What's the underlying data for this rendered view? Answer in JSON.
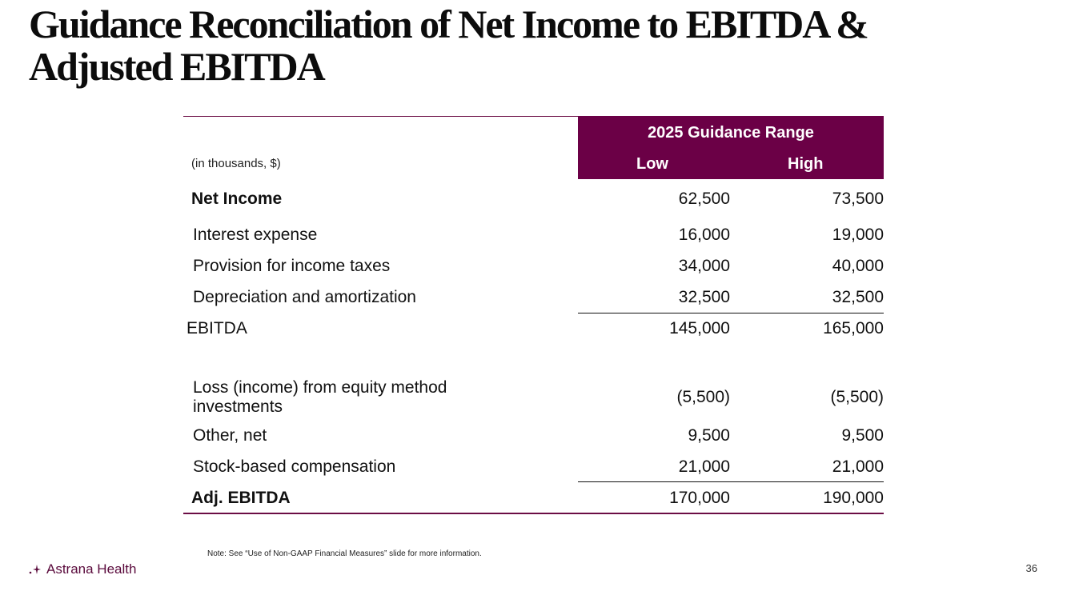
{
  "slide": {
    "title": "Guidance Reconciliation of Net Income to EBITDA & Adjusted EBITDA",
    "page_number": "36",
    "note": "Note: See “Use of Non-GAAP Financial Measures” slide for more information.",
    "logo_text": "Astrana Health"
  },
  "table": {
    "units_label": "(in thousands, $)",
    "group_header": "2025 Guidance Range",
    "col_low": "Low",
    "col_high": "High",
    "rows": [
      {
        "label": "Net Income",
        "low": "62,500",
        "high": "73,500"
      },
      {
        "label": "Interest expense",
        "low": "16,000",
        "high": "19,000"
      },
      {
        "label": "Provision for income taxes",
        "low": "34,000",
        "high": "40,000"
      },
      {
        "label": "Depreciation and amortization",
        "low": "32,500",
        "high": "32,500"
      },
      {
        "label": "EBITDA",
        "low": "145,000",
        "high": "165,000"
      },
      {
        "label": "Loss (income) from equity method investments",
        "low": "(5,500)",
        "high": "(5,500)"
      },
      {
        "label": "Other, net",
        "low": "9,500",
        "high": "9,500"
      },
      {
        "label": "Stock-based compensation",
        "low": "21,000",
        "high": "21,000"
      },
      {
        "label": "Adj. EBITDA",
        "low": "170,000",
        "high": "190,000"
      }
    ]
  },
  "colors": {
    "brand": "#6b0046",
    "text": "#111111"
  }
}
